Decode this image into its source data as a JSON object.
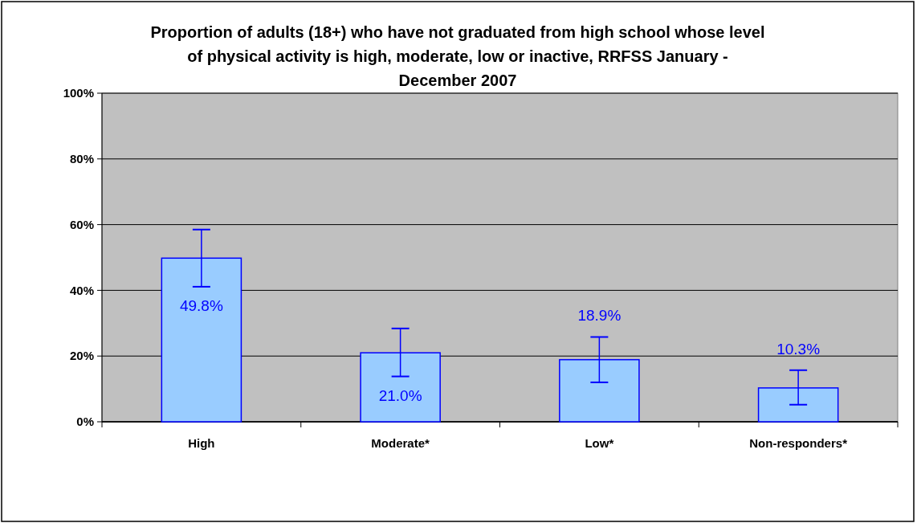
{
  "chart_data": {
    "type": "bar",
    "title": "Proportion of adults (18+) who have not graduated from high school whose level of physical activity is high, moderate, low or inactive, RRFSS January - December 2007",
    "categories": [
      "High",
      "Moderate*",
      "Low*",
      "Non-responders*"
    ],
    "values": [
      49.8,
      21.0,
      18.9,
      10.3
    ],
    "errors": [
      [
        41.1,
        58.5
      ],
      [
        13.8,
        28.4
      ],
      [
        12.0,
        25.8
      ],
      [
        5.2,
        15.7
      ]
    ],
    "color": "#99ccff",
    "value_labels": [
      "49.8%",
      "21.0%",
      "18.9%",
      "10.3%"
    ],
    "ylim": [
      0,
      100
    ],
    "yticks": [
      {
        "value": 0,
        "label": "0%"
      },
      {
        "value": 20,
        "label": "20%"
      },
      {
        "value": 40,
        "label": "40%"
      },
      {
        "value": 60,
        "label": "60%"
      },
      {
        "value": 80,
        "label": "80%"
      },
      {
        "value": 100,
        "label": "100%"
      }
    ],
    "grid": "y"
  }
}
